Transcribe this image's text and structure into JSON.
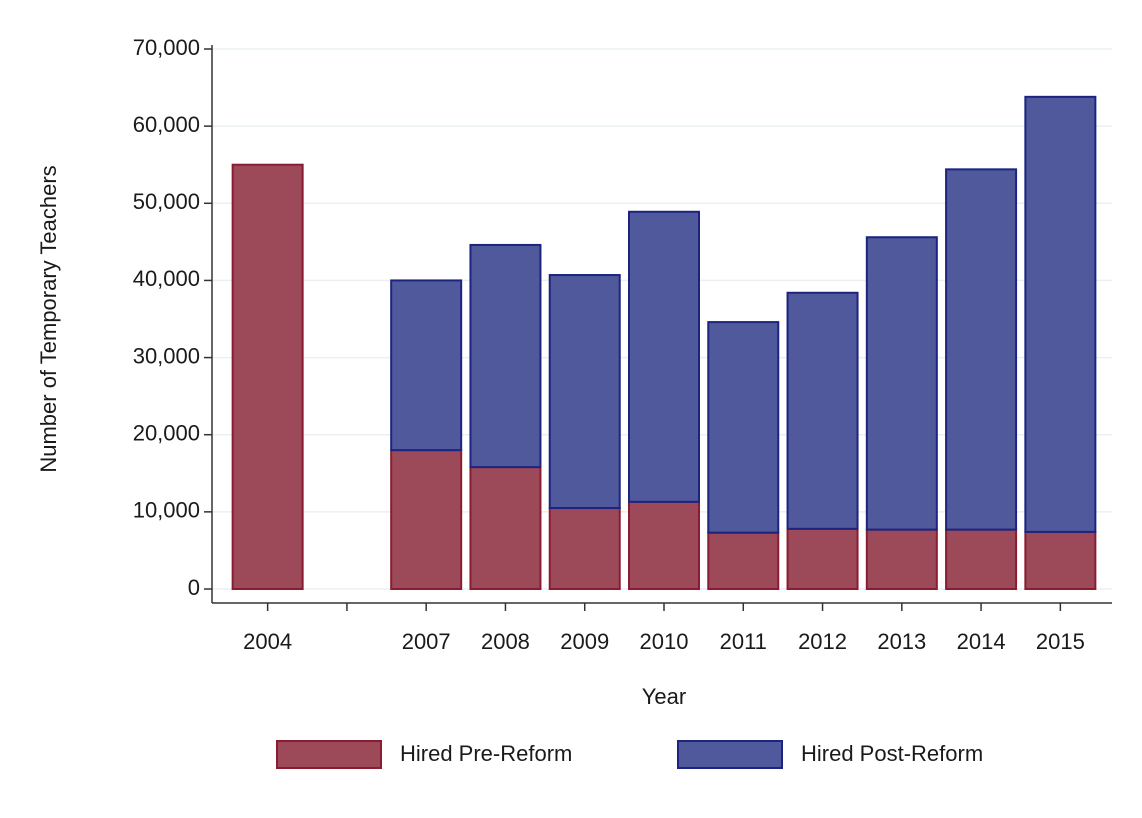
{
  "chart_data": {
    "type": "stacked_bar",
    "x_label": "Year",
    "y_label": "Number of Temporary Teachers",
    "categories": [
      "2004",
      null,
      "2007",
      "2008",
      "2009",
      "2010",
      "2011",
      "2012",
      "2013",
      "2014",
      "2015"
    ],
    "series": [
      {
        "name": "Hired Pre-Reform",
        "color": "#9c4a5a",
        "edgecolor": "#8a1c30",
        "values": [
          55000,
          null,
          18000,
          15800,
          10500,
          11300,
          7300,
          7800,
          7700,
          7700,
          7400
        ]
      },
      {
        "name": "Hired Post-Reform",
        "color": "#4f599c",
        "edgecolor": "#1c2480",
        "values": [
          null,
          null,
          22000,
          28800,
          30200,
          37600,
          27300,
          30600,
          37900,
          46700,
          56400
        ]
      }
    ],
    "ylim": [
      0,
      70000
    ],
    "yticks": [
      0,
      {
        "value": 10000,
        "label": "10,000"
      },
      {
        "value": 20000,
        "label": "20,000"
      },
      {
        "value": 30000,
        "label": "30,000"
      },
      {
        "value": 40000,
        "label": "40,000"
      },
      {
        "value": 50000,
        "label": "50,000"
      },
      {
        "value": 60000,
        "label": "60,000"
      },
      {
        "value": 70000,
        "label": "70,000"
      }
    ],
    "grid": true
  }
}
